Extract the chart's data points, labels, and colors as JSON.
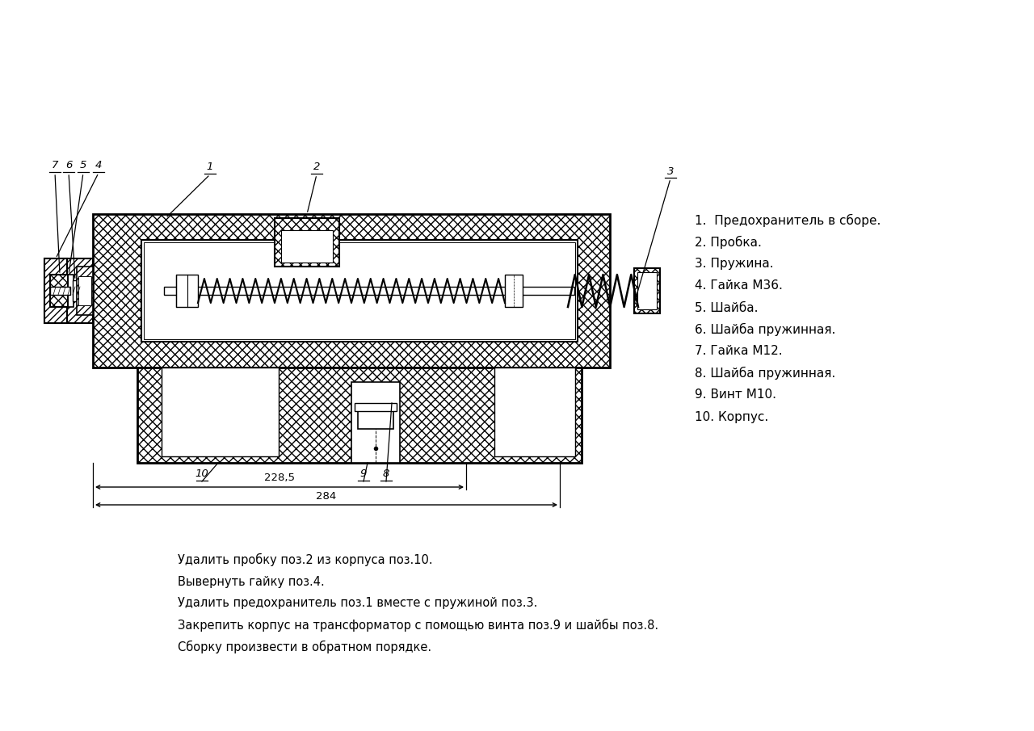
{
  "bg_color": "#ffffff",
  "parts_list": [
    "1.  Предохранитель в сборе.",
    "2. Пробка.",
    "3. Пружина.",
    "4. Гайка М36.",
    "5. Шайба.",
    "6. Шайба пружинная.",
    "7. Гайка М12.",
    "8. Шайба пружинная.",
    "9. Винт М10.",
    "10. Корпус."
  ],
  "instructions": [
    "Удалить пробку поз.2 из корпуса поз.10.",
    "Вывернуть гайку поз.4.",
    "Удалить предохранитель поз.1 вместе с пружиной поз.3.",
    "Закрепить корпус на трансформатор с помощью винта поз.9 и шайбы поз.8.",
    "Сборку произвести в обратном порядке."
  ],
  "dim1_label": "228,5",
  "dim2_label": "284",
  "label_nums": [
    "7",
    "6",
    "5",
    "4",
    "1",
    "2",
    "3"
  ],
  "bot_labels": [
    "10",
    "9",
    "8"
  ]
}
